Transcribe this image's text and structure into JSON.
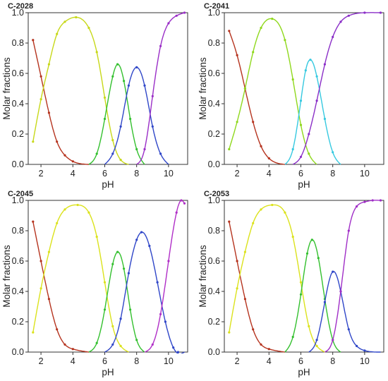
{
  "chart_data": [
    {
      "type": "line",
      "title": "C-2028",
      "xlabel": "pH",
      "ylabel": "Molar fractions",
      "xlim": [
        1.2,
        11.2
      ],
      "ylim": [
        0,
        1.0
      ],
      "x_ticks": [
        "2",
        "4",
        "6",
        "8",
        "10"
      ],
      "y_ticks": [
        "0.0",
        "0.2",
        "0.4",
        "0.6",
        "0.8",
        "1.0"
      ],
      "grid": false,
      "legend": "none",
      "series": [
        {
          "color": "#b5331e",
          "x": [
            1.5,
            2.0,
            2.5,
            3.0,
            3.5,
            4.0,
            5.0
          ],
          "values": [
            0.82,
            0.58,
            0.34,
            0.15,
            0.06,
            0.02,
            0.0
          ]
        },
        {
          "color": "#c7d819",
          "x": [
            1.5,
            2.0,
            2.5,
            3.0,
            3.5,
            4.2,
            5.0,
            5.5,
            6.0,
            6.5,
            7.0,
            7.5
          ],
          "values": [
            0.15,
            0.43,
            0.66,
            0.86,
            0.94,
            0.97,
            0.9,
            0.74,
            0.44,
            0.16,
            0.03,
            0.0
          ]
        },
        {
          "color": "#33c02e",
          "x": [
            5.0,
            5.5,
            6.0,
            6.5,
            6.8,
            7.2,
            7.6,
            8.0,
            8.5
          ],
          "values": [
            0.0,
            0.07,
            0.3,
            0.58,
            0.66,
            0.55,
            0.3,
            0.1,
            0.0
          ]
        },
        {
          "color": "#2f46c8",
          "x": [
            6.0,
            6.5,
            7.0,
            7.5,
            8.0,
            8.5,
            9.0,
            9.5,
            10.0
          ],
          "values": [
            0.0,
            0.07,
            0.25,
            0.52,
            0.64,
            0.52,
            0.25,
            0.07,
            0.0
          ]
        },
        {
          "color": "#9a2ec7",
          "x": [
            8.0,
            8.5,
            9.0,
            9.5,
            10.0,
            10.5,
            11.0
          ],
          "values": [
            0.0,
            0.1,
            0.45,
            0.78,
            0.93,
            0.98,
            1.0
          ]
        }
      ]
    },
    {
      "type": "line",
      "title": "C-2041",
      "xlabel": "pH",
      "ylabel": "Molar fractions",
      "xlim": [
        1.2,
        11.2
      ],
      "ylim": [
        0,
        1.0
      ],
      "x_ticks": [
        "2",
        "4",
        "6",
        "8",
        "10"
      ],
      "y_ticks": [
        "0.0",
        "0.2",
        "0.4",
        "0.6",
        "0.8",
        "1.0"
      ],
      "grid": false,
      "legend": "none",
      "series": [
        {
          "color": "#b5331e",
          "x": [
            1.5,
            2.0,
            2.5,
            3.0,
            3.5,
            4.0,
            5.0
          ],
          "values": [
            0.88,
            0.72,
            0.5,
            0.28,
            0.12,
            0.04,
            0.0
          ]
        },
        {
          "color": "#8fd81c",
          "x": [
            1.5,
            2.0,
            2.5,
            3.0,
            3.5,
            4.2,
            5.0,
            5.5,
            6.0,
            6.5,
            7.0
          ],
          "values": [
            0.1,
            0.28,
            0.5,
            0.74,
            0.9,
            0.96,
            0.82,
            0.56,
            0.26,
            0.07,
            0.0
          ]
        },
        {
          "color": "#36c9e0",
          "x": [
            5.0,
            5.5,
            6.0,
            6.3,
            6.6,
            7.0,
            7.5,
            8.0,
            8.5
          ],
          "values": [
            0.0,
            0.1,
            0.42,
            0.62,
            0.69,
            0.58,
            0.3,
            0.08,
            0.0
          ]
        },
        {
          "color": "#8a2ec7",
          "x": [
            5.5,
            6.0,
            6.5,
            7.0,
            7.5,
            8.0,
            8.5,
            9.0,
            10.0,
            11.0
          ],
          "values": [
            0.0,
            0.05,
            0.2,
            0.42,
            0.66,
            0.84,
            0.94,
            0.98,
            1.0,
            1.0
          ]
        }
      ]
    },
    {
      "type": "line",
      "title": "C-2045",
      "xlabel": "pH",
      "ylabel": "Molar fractions",
      "xlim": [
        1.2,
        11.2
      ],
      "ylim": [
        0,
        1.0
      ],
      "x_ticks": [
        "2",
        "4",
        "6",
        "8",
        "10"
      ],
      "y_ticks": [
        "0.0",
        "0.2",
        "0.4",
        "0.6",
        "0.8",
        "1.0"
      ],
      "grid": false,
      "legend": "none",
      "series": [
        {
          "color": "#b5331e",
          "x": [
            1.5,
            2.0,
            2.5,
            3.0,
            3.5,
            4.0,
            5.0
          ],
          "values": [
            0.86,
            0.6,
            0.35,
            0.15,
            0.05,
            0.02,
            0.0
          ]
        },
        {
          "color": "#dbe21c",
          "x": [
            1.5,
            2.0,
            2.5,
            3.0,
            3.5,
            4.3,
            5.0,
            5.5,
            6.0,
            6.5,
            7.0,
            7.5
          ],
          "values": [
            0.13,
            0.42,
            0.66,
            0.85,
            0.94,
            0.97,
            0.92,
            0.76,
            0.46,
            0.17,
            0.04,
            0.0
          ]
        },
        {
          "color": "#33c02e",
          "x": [
            5.0,
            5.5,
            6.0,
            6.5,
            6.8,
            7.2,
            7.6,
            8.0,
            8.5
          ],
          "values": [
            0.0,
            0.06,
            0.28,
            0.58,
            0.66,
            0.55,
            0.28,
            0.08,
            0.0
          ]
        },
        {
          "color": "#2f46c8",
          "x": [
            6.0,
            6.5,
            7.0,
            7.5,
            8.0,
            8.3,
            8.8,
            9.3,
            9.8,
            10.3,
            10.6,
            11.0
          ],
          "values": [
            0.0,
            0.05,
            0.22,
            0.52,
            0.74,
            0.79,
            0.7,
            0.46,
            0.2,
            0.03,
            -0.01,
            0.0
          ]
        },
        {
          "color": "#b02ec7",
          "x": [
            8.5,
            9.0,
            9.5,
            10.0,
            10.5,
            10.8,
            11.0
          ],
          "values": [
            0.0,
            0.05,
            0.25,
            0.6,
            0.92,
            1.0,
            0.98
          ]
        }
      ]
    },
    {
      "type": "line",
      "title": "C-2053",
      "xlabel": "pH",
      "ylabel": "Molar fractions",
      "xlim": [
        1.2,
        11.2
      ],
      "ylim": [
        0,
        1.0
      ],
      "x_ticks": [
        "2",
        "4",
        "6",
        "8",
        "10"
      ],
      "y_ticks": [
        "0.0",
        "0.2",
        "0.4",
        "0.6",
        "0.8",
        "1.0"
      ],
      "grid": false,
      "legend": "none",
      "series": [
        {
          "color": "#b5331e",
          "x": [
            1.5,
            2.0,
            2.5,
            3.0,
            3.5,
            4.0,
            5.0
          ],
          "values": [
            0.86,
            0.6,
            0.35,
            0.15,
            0.05,
            0.02,
            0.0
          ]
        },
        {
          "color": "#dbe21c",
          "x": [
            1.5,
            2.0,
            2.5,
            3.0,
            3.5,
            4.2,
            5.0,
            5.5,
            6.0,
            6.5,
            7.0,
            7.5
          ],
          "values": [
            0.13,
            0.42,
            0.66,
            0.85,
            0.94,
            0.97,
            0.92,
            0.76,
            0.46,
            0.17,
            0.04,
            0.0
          ]
        },
        {
          "color": "#33c02e",
          "x": [
            5.0,
            5.5,
            6.0,
            6.4,
            6.7,
            7.1,
            7.5,
            8.0,
            8.5
          ],
          "values": [
            0.0,
            0.1,
            0.38,
            0.65,
            0.74,
            0.62,
            0.35,
            0.08,
            0.0
          ]
        },
        {
          "color": "#2f46c8",
          "x": [
            6.5,
            7.0,
            7.5,
            8.0,
            8.5,
            9.0,
            9.5,
            10.0,
            11.0
          ],
          "values": [
            0.0,
            0.08,
            0.33,
            0.53,
            0.4,
            0.15,
            0.04,
            0.01,
            0.0
          ]
        },
        {
          "color": "#a02ec7",
          "x": [
            7.5,
            8.0,
            8.5,
            9.0,
            9.5,
            10.0,
            10.5,
            11.0
          ],
          "values": [
            0.0,
            0.08,
            0.4,
            0.8,
            0.96,
            0.99,
            1.0,
            1.0
          ]
        }
      ]
    }
  ]
}
